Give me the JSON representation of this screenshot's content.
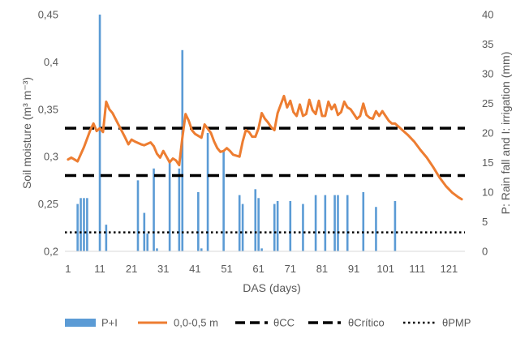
{
  "chart_data": {
    "type": "bar+line",
    "xlabel": "DAS (days)",
    "ylabel_left": "Soil moisture (m³ m⁻³)",
    "ylabel_right": "P: Rain fall and I: irrigation (mm)",
    "x_ticks": [
      1,
      11,
      21,
      31,
      41,
      51,
      61,
      71,
      81,
      91,
      101,
      111,
      121
    ],
    "xlim": [
      0,
      126
    ],
    "y_left": {
      "lim": [
        0.2,
        0.45
      ],
      "ticks": [
        "0,2",
        "0,25",
        "0,3",
        "0,35",
        "0,4",
        "0,45"
      ],
      "tick_values": [
        0.2,
        0.25,
        0.3,
        0.35,
        0.4,
        0.45
      ]
    },
    "y_right": {
      "lim": [
        0,
        40
      ],
      "ticks": [
        "0",
        "5",
        "10",
        "15",
        "20",
        "25",
        "30",
        "35",
        "40"
      ],
      "tick_values": [
        0,
        5,
        10,
        15,
        20,
        25,
        30,
        35,
        40
      ]
    },
    "bars": {
      "name": "P+I",
      "color": "#5b9bd5",
      "x": [
        4,
        5,
        6,
        7,
        11,
        13,
        23,
        25,
        26,
        28,
        29,
        33,
        36,
        37,
        42,
        43,
        45,
        50,
        55,
        56,
        60,
        61,
        62,
        66,
        67,
        71,
        75,
        79,
        82,
        85,
        86,
        89,
        94,
        98,
        104
      ],
      "values": [
        8,
        9,
        9,
        9,
        40,
        4.5,
        12,
        6.5,
        3,
        14,
        0.5,
        15,
        14,
        34,
        10,
        0.5,
        20,
        17,
        9.5,
        8,
        10.5,
        9,
        0.5,
        8,
        8.5,
        8.5,
        8,
        9.5,
        9.5,
        9.5,
        9.5,
        9.5,
        10,
        7.5,
        8.5
      ]
    },
    "soil_line": {
      "name": "0,0-0,5 m",
      "color": "#ed7d31",
      "x": [
        1,
        2,
        3,
        4,
        6,
        8,
        9,
        10,
        11,
        12,
        13,
        14,
        15,
        17,
        19,
        20,
        21,
        22,
        24,
        25,
        27,
        28,
        29,
        30,
        31,
        32,
        33,
        34,
        35,
        36,
        37,
        38,
        39,
        40,
        41,
        43,
        44,
        46,
        47,
        48,
        49,
        50,
        51,
        52,
        53,
        55,
        56,
        57,
        58,
        59,
        60,
        61,
        62,
        63,
        64,
        65,
        66,
        67,
        68,
        69,
        70,
        71,
        72,
        73,
        74,
        75,
        76,
        77,
        78,
        79,
        80,
        81,
        82,
        83,
        84,
        85,
        86,
        87,
        88,
        89,
        90,
        91,
        92,
        93,
        94,
        95,
        96,
        97,
        98,
        99,
        100,
        101,
        102,
        103,
        104,
        106,
        108,
        110,
        112,
        114,
        116,
        118,
        120,
        122,
        124,
        125
      ],
      "values": [
        0.297,
        0.299,
        0.297,
        0.295,
        0.31,
        0.328,
        0.335,
        0.327,
        0.33,
        0.326,
        0.358,
        0.35,
        0.346,
        0.333,
        0.32,
        0.313,
        0.318,
        0.316,
        0.313,
        0.312,
        0.315,
        0.311,
        0.303,
        0.299,
        0.306,
        0.3,
        0.294,
        0.298,
        0.296,
        0.291,
        0.32,
        0.345,
        0.338,
        0.328,
        0.324,
        0.32,
        0.334,
        0.325,
        0.316,
        0.309,
        0.305,
        0.306,
        0.309,
        0.306,
        0.302,
        0.3,
        0.316,
        0.328,
        0.326,
        0.321,
        0.321,
        0.33,
        0.346,
        0.34,
        0.336,
        0.331,
        0.328,
        0.346,
        0.355,
        0.364,
        0.352,
        0.359,
        0.347,
        0.343,
        0.355,
        0.343,
        0.345,
        0.36,
        0.349,
        0.345,
        0.359,
        0.343,
        0.343,
        0.358,
        0.35,
        0.355,
        0.344,
        0.347,
        0.358,
        0.352,
        0.35,
        0.345,
        0.34,
        0.343,
        0.356,
        0.344,
        0.341,
        0.34,
        0.348,
        0.343,
        0.348,
        0.343,
        0.338,
        0.335,
        0.335,
        0.329,
        0.323,
        0.316,
        0.307,
        0.299,
        0.289,
        0.278,
        0.269,
        0.262,
        0.257,
        0.255
      ]
    },
    "hlines": [
      {
        "name": "θCC",
        "y": 0.33,
        "style": "long-dash"
      },
      {
        "name": "θCrítico",
        "y": 0.28,
        "style": "long-dash"
      },
      {
        "name": "θPMP",
        "y": 0.22,
        "style": "dotted"
      }
    ],
    "legend": {
      "position": "bottom",
      "entries": [
        {
          "label": "P+I",
          "kind": "bar"
        },
        {
          "label": "0,0-0,5 m",
          "kind": "line"
        },
        {
          "label": "θCC",
          "kind": "dash"
        },
        {
          "label": "θCrítico",
          "kind": "dash"
        },
        {
          "label": "θPMP",
          "kind": "dot"
        }
      ]
    },
    "grid": false
  }
}
